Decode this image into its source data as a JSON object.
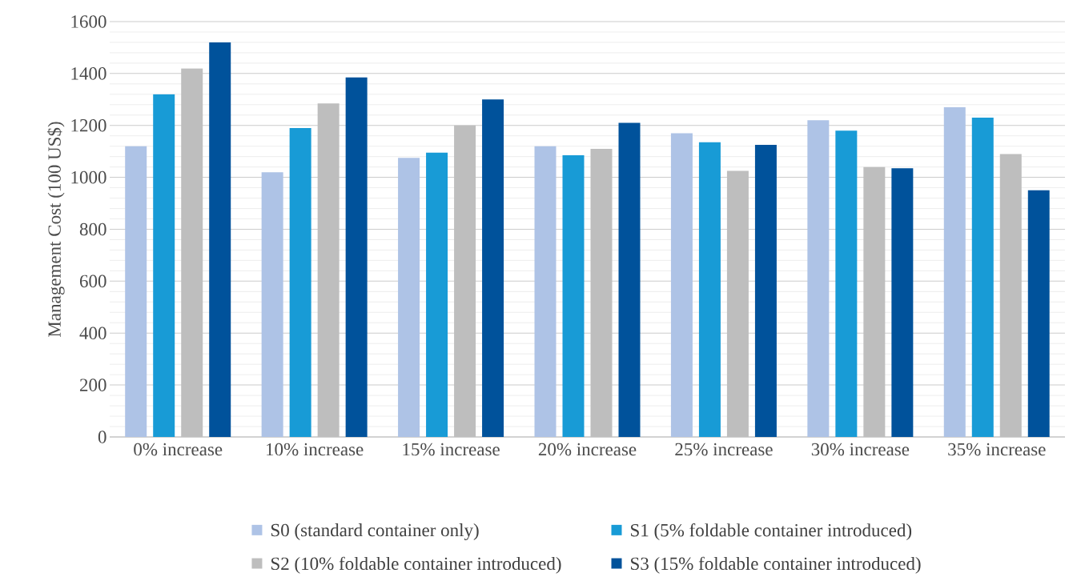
{
  "chart_data": {
    "type": "bar",
    "ylabel": "Management Cost (100 US$)",
    "categories": [
      "0% increase",
      "10% increase",
      "15% increase",
      "20% increase",
      "25% increase",
      "30% increase",
      "35% increase"
    ],
    "series": [
      {
        "name": "S0 (standard container only)",
        "color": "#aec3e6",
        "values": [
          1120,
          1020,
          1075,
          1120,
          1170,
          1220,
          1270
        ]
      },
      {
        "name": "S1 (5% foldable container introduced)",
        "color": "#189bd6",
        "values": [
          1320,
          1190,
          1095,
          1085,
          1135,
          1180,
          1230
        ]
      },
      {
        "name": "S2 (10% foldable container introduced)",
        "color": "#bebebe",
        "values": [
          1420,
          1285,
          1200,
          1110,
          1025,
          1040,
          1090
        ]
      },
      {
        "name": "S3 (15% foldable container introduced)",
        "color": "#00529b",
        "values": [
          1520,
          1385,
          1300,
          1210,
          1125,
          1035,
          950
        ]
      }
    ],
    "ylim": [
      0,
      1600
    ],
    "yticks": [
      0,
      200,
      400,
      600,
      800,
      1000,
      1200,
      1400,
      1600
    ],
    "grid": "y",
    "legend": "bottom"
  }
}
